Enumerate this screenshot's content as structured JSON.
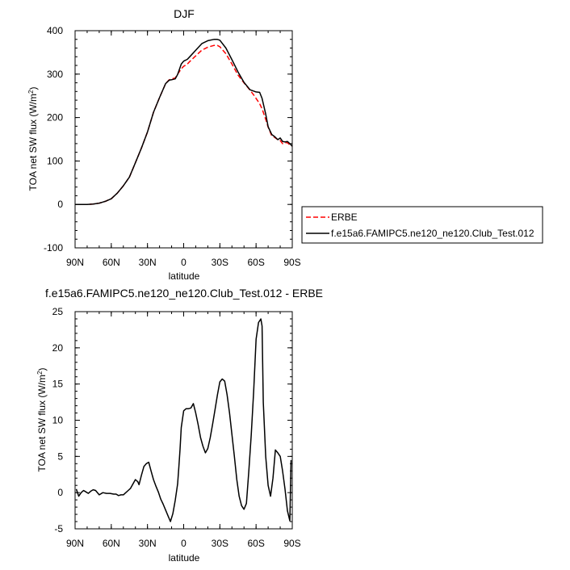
{
  "chart_data": [
    {
      "type": "line",
      "title": "DJF",
      "xlabel": "latitude",
      "ylabel_prefix": "TOA net SW flux (W/m",
      "ylabel_sup": "2",
      "ylabel_suffix": ")",
      "xlim": [
        -90,
        90
      ],
      "ylim": [
        -100,
        400
      ],
      "xticks": [
        -90,
        -60,
        -30,
        0,
        30,
        60,
        90
      ],
      "xtick_labels": [
        "90N",
        "60N",
        "30N",
        "0",
        "30S",
        "60S",
        "90S"
      ],
      "yticks": [
        -100,
        0,
        100,
        200,
        300,
        400
      ],
      "ytick_labels": [
        "-100",
        "0",
        "100",
        "200",
        "300",
        "400"
      ],
      "legend_position": "outside-right-bottom",
      "series": [
        {
          "name": "ERBE",
          "color": "#ff0000",
          "dash": "dashed",
          "x": [
            -90,
            -80,
            -75,
            -70,
            -65,
            -60,
            -55,
            -50,
            -45,
            -40,
            -35,
            -30,
            -25,
            -20,
            -15,
            -12,
            -10,
            -7,
            -5,
            -2,
            0,
            3,
            5,
            10,
            15,
            20,
            25,
            28,
            30,
            35,
            40,
            45,
            50,
            55,
            58,
            60,
            63,
            65,
            68,
            70,
            73,
            75,
            78,
            80,
            82,
            84,
            86,
            88,
            90
          ],
          "y": [
            0,
            0,
            1,
            3,
            7,
            13,
            26,
            43,
            63,
            96,
            130,
            167,
            212,
            246,
            278,
            287,
            289,
            291,
            300,
            312,
            318,
            323,
            329,
            342,
            355,
            362,
            366,
            366,
            363,
            347,
            323,
            298,
            280,
            263,
            252,
            244,
            232,
            220,
            196,
            178,
            158,
            155,
            149,
            147,
            140,
            142,
            142,
            137,
            134
          ]
        },
        {
          "name": "f.e15a6.FAMIPC5.ne120_ne120.Club_Test.012",
          "color": "#000000",
          "dash": "solid",
          "x": [
            -90,
            -80,
            -75,
            -70,
            -65,
            -60,
            -55,
            -50,
            -45,
            -40,
            -35,
            -30,
            -25,
            -20,
            -15,
            -12,
            -10,
            -7,
            -5,
            -2,
            0,
            3,
            5,
            10,
            15,
            20,
            25,
            28,
            30,
            35,
            40,
            45,
            50,
            55,
            58,
            60,
            63,
            65,
            68,
            70,
            73,
            75,
            78,
            80,
            82,
            84,
            86,
            88,
            90
          ],
          "y": [
            0,
            0,
            1,
            3,
            7,
            13,
            26,
            43,
            63,
            96,
            130,
            167,
            212,
            246,
            278,
            286,
            287,
            289,
            299,
            323,
            330,
            334,
            340,
            355,
            370,
            377,
            380,
            380,
            378,
            360,
            333,
            305,
            281,
            264,
            261,
            259,
            258,
            244,
            208,
            179,
            161,
            157,
            149,
            153,
            145,
            144,
            145,
            140,
            134
          ]
        }
      ]
    },
    {
      "type": "line",
      "title": "f.e15a6.FAMIPC5.ne120_ne120.Club_Test.012 - ERBE",
      "xlabel": "latitude",
      "ylabel_prefix": "TOA net SW flux (W/m",
      "ylabel_sup": "2",
      "ylabel_suffix": ")",
      "xlim": [
        -90,
        90
      ],
      "ylim": [
        -5,
        25
      ],
      "xticks": [
        -90,
        -60,
        -30,
        0,
        30,
        60,
        90
      ],
      "xtick_labels": [
        "90N",
        "60N",
        "30N",
        "0",
        "30S",
        "60S",
        "90S"
      ],
      "yticks": [
        -5,
        0,
        5,
        10,
        15,
        20,
        25
      ],
      "ytick_labels": [
        "-5",
        "0",
        "5",
        "10",
        "15",
        "20",
        "25"
      ],
      "series": [
        {
          "color": "#000000",
          "dash": "solid",
          "x": [
            -89,
            -87,
            -85,
            -83,
            -81,
            -79,
            -77,
            -75,
            -73,
            -70,
            -67,
            -64,
            -61,
            -58,
            -56,
            -54,
            -52,
            -50,
            -48,
            -46,
            -44,
            -42,
            -40,
            -38,
            -37,
            -35,
            -33,
            -31,
            -29,
            -27,
            -25,
            -23,
            -21,
            -19,
            -17,
            -15,
            -13,
            -11,
            -9,
            -7,
            -5,
            -4,
            -3,
            -2,
            0,
            2,
            4,
            6,
            8,
            10,
            12,
            14,
            16,
            18,
            20,
            22,
            24,
            26,
            28,
            30,
            32,
            34,
            36,
            38,
            40,
            42,
            44,
            46,
            48,
            50,
            52,
            54,
            56,
            58,
            60,
            62,
            64,
            65,
            66,
            68,
            70,
            72,
            74,
            76,
            78,
            80,
            82,
            84,
            86,
            88,
            89
          ],
          "y": [
            0.5,
            -0.5,
            0,
            0.3,
            0.1,
            -0.1,
            0.2,
            0.4,
            0.3,
            -0.3,
            0,
            -0.1,
            -0.1,
            -0.2,
            -0.2,
            -0.4,
            -0.3,
            -0.3,
            0,
            0.3,
            0.6,
            1.2,
            1.8,
            1.5,
            1.1,
            2.4,
            3.6,
            4.0,
            4.2,
            3.0,
            1.8,
            0.9,
            0.1,
            -0.9,
            -1.6,
            -2.4,
            -3.2,
            -4.0,
            -2.9,
            -1.1,
            1.2,
            3.5,
            6.0,
            9.0,
            11.3,
            11.6,
            11.6,
            11.7,
            12.3,
            11.0,
            9.4,
            7.6,
            6.4,
            5.5,
            6.1,
            7.6,
            9.5,
            11.5,
            13.5,
            15.3,
            15.7,
            15.4,
            13.5,
            11.0,
            8.0,
            5.0,
            1.8,
            -0.5,
            -1.8,
            -2.3,
            -1.5,
            3.0,
            8.0,
            14.0,
            21.2,
            23.5,
            24.0,
            23.0,
            12.5,
            5.0,
            1.0,
            -0.5,
            2.0,
            5.9,
            5.5,
            5.0,
            3.0,
            0.5,
            -2.5,
            -3.9,
            4.5
          ]
        }
      ]
    }
  ]
}
